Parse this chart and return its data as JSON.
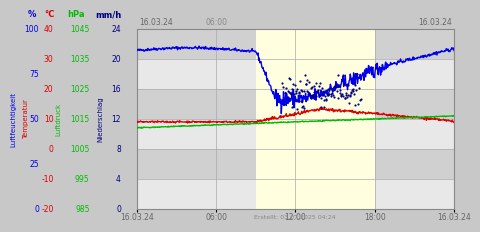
{
  "footer_text": "Erstellt: 03.07.2025 04:24",
  "x_tick_labels": [
    "16.03.24",
    "06:00",
    "12:00",
    "18:00",
    "16.03.24"
  ],
  "x_tick_positions": [
    0,
    6,
    12,
    18,
    24
  ],
  "yellow_region": [
    9,
    18
  ],
  "ylim": [
    0,
    24
  ],
  "xlim": [
    0,
    24
  ],
  "fig_bg": "#c8c8c8",
  "plot_bg_light": "#e8e8e8",
  "plot_bg_dark": "#d0d0d0",
  "yellow_bg": "#ffffe0",
  "grid_color": "#aaaaaa",
  "line_humidity_color": "#0000ee",
  "line_temp_color": "#dd0000",
  "line_pressure_color": "#00bb00",
  "line_precip_color": "#000080",
  "label_colors": [
    "#0000ee",
    "#dd0000",
    "#00bb00",
    "#000080"
  ],
  "unit_labels": [
    "%",
    "°C",
    "hPa",
    "mm/h"
  ],
  "rotated_labels": [
    "Luftfeuchtigkeit",
    "Temperatur",
    "Luftdruck",
    "Niederschlag"
  ],
  "hum_ticks": [
    100,
    75,
    50,
    25,
    0
  ],
  "temp_ticks": [
    40,
    30,
    20,
    10,
    0,
    -10,
    -20
  ],
  "pres_ticks": [
    1045,
    1035,
    1025,
    1015,
    1005,
    995,
    985
  ],
  "prec_ticks": [
    24,
    20,
    16,
    12,
    8,
    4,
    0
  ],
  "hum_range": [
    0,
    100
  ],
  "temp_range": [
    -20,
    40
  ],
  "pres_range": [
    985,
    1045
  ],
  "prec_range": [
    0,
    24
  ]
}
